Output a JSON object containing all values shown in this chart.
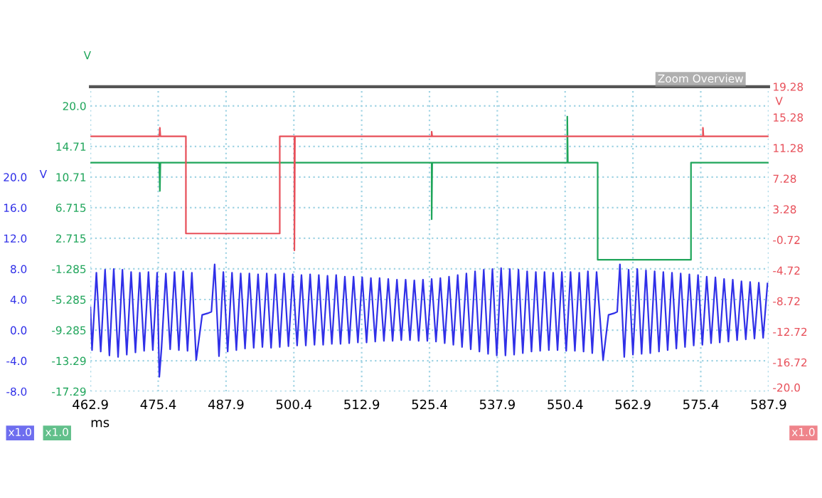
{
  "chart_data": {
    "type": "line",
    "xlabel": "ms",
    "ylabel": "V",
    "y2label": "V",
    "y3label": "V",
    "grid": true,
    "line_style": "solid",
    "xlim": [
      462.9,
      587.9
    ],
    "xticks": [
      462.9,
      475.4,
      487.9,
      500.4,
      512.9,
      525.4,
      537.9,
      550.4,
      562.9,
      575.4,
      587.9
    ],
    "ylim": [
      -17.29,
      22.52
    ],
    "yticks": [
      {
        "value": 20,
        "label": "20.0"
      },
      14.71,
      10.71,
      6.715,
      2.715,
      -1.285,
      -5.285,
      -9.285,
      -13.29,
      -17.29
    ],
    "y2lim": [
      -20.52,
      19.28
    ],
    "y2ticks": [
      19.28,
      15.28,
      11.28,
      7.28,
      3.28,
      -0.72,
      -4.72,
      -8.72,
      -12.72,
      -16.72,
      {
        "value": -20,
        "label": "-20.0"
      }
    ],
    "y3lim": [
      -8.0,
      31.81
    ],
    "y3ticks": [
      {
        "value": 20,
        "label": "20.0"
      },
      {
        "value": 16,
        "label": "16.0"
      },
      {
        "value": 12,
        "label": "12.0"
      },
      {
        "value": 8,
        "label": "8.0"
      },
      {
        "value": 4,
        "label": "4.0"
      },
      {
        "value": 0,
        "label": "0.0"
      },
      {
        "value": -4,
        "label": "-4.0"
      },
      {
        "value": -8,
        "label": "-8.0"
      }
    ],
    "annotations": [
      "Zoom Overview",
      "x1.0",
      "x1.0",
      "x1.0"
    ],
    "series": [
      {
        "axis": "y2",
        "color": "#e8505a",
        "x": [
          462.9,
          475.6,
          475.7,
          475.8,
          480.5,
          480.5,
          497.8,
          497.8,
          500.5,
          500.5,
          500.6,
          525.8,
          525.8,
          525.9,
          575.8,
          575.8,
          575.9,
          587.9
        ],
        "values": [
          12.8,
          12.8,
          13.9,
          12.8,
          12.8,
          0.1,
          0.1,
          12.8,
          12.8,
          -2.1,
          12.8,
          12.8,
          13.4,
          12.8,
          12.8,
          13.9,
          12.8,
          12.8
        ]
      },
      {
        "axis": "y",
        "color": "#1fa55a",
        "x": [
          462.9,
          475.6,
          475.7,
          475.8,
          525.8,
          525.8,
          525.9,
          550.8,
          550.8,
          550.9,
          556.4,
          556.4,
          573.6,
          573.6,
          587.9
        ],
        "values": [
          12.6,
          12.6,
          8.9,
          12.6,
          12.6,
          5.2,
          12.6,
          12.6,
          18.6,
          12.6,
          12.6,
          -0.1,
          -0.1,
          12.6,
          12.6
        ]
      },
      {
        "axis": "y3",
        "color": "#3030e8",
        "x": [
          462.9,
          463.2,
          464.0,
          464.8,
          465.6,
          466.4,
          467.2,
          468.0,
          468.8,
          469.6,
          470.4,
          471.2,
          472.0,
          472.8,
          473.6,
          474.4,
          475.2,
          475.6,
          476.0,
          476.8,
          477.6,
          478.4,
          479.2,
          480.0,
          480.8,
          481.6,
          482.4,
          483.5,
          484.5,
          485.2,
          485.8,
          486.6,
          487.4,
          488.2,
          489.0,
          489.8,
          490.6,
          491.4,
          492.2,
          493.0,
          493.8,
          494.6,
          495.4,
          496.2,
          497.0,
          497.8,
          498.6,
          499.4,
          500.2,
          501.0,
          501.8,
          502.6,
          503.4,
          504.2,
          505.0,
          505.8,
          506.6,
          507.4,
          508.2,
          509.0,
          509.8,
          510.6,
          511.4,
          512.2,
          513.0,
          513.8,
          514.6,
          515.4,
          516.2,
          517.0,
          517.8,
          518.6,
          519.4,
          520.2,
          521.0,
          521.8,
          522.6,
          523.4,
          524.2,
          525.0,
          525.8,
          526.6,
          527.4,
          528.2,
          529.0,
          529.8,
          530.6,
          531.4,
          532.2,
          533.0,
          533.8,
          534.6,
          535.4,
          536.2,
          537.0,
          537.8,
          538.6,
          539.4,
          540.2,
          541.0,
          541.8,
          542.6,
          543.4,
          544.2,
          545.0,
          545.8,
          546.6,
          547.4,
          548.2,
          549.0,
          549.8,
          550.6,
          551.4,
          552.2,
          553.0,
          553.8,
          554.6,
          555.4,
          556.2,
          557.4,
          558.4,
          559.4,
          560.0,
          560.5,
          561.3,
          562.1,
          562.9,
          563.7,
          564.5,
          565.3,
          566.1,
          566.9,
          567.7,
          568.5,
          569.3,
          570.1,
          570.9,
          571.7,
          572.5,
          573.3,
          574.1,
          574.9,
          575.7,
          576.5,
          577.3,
          578.1,
          578.9,
          579.7,
          580.5,
          581.3,
          582.1,
          582.9,
          583.7,
          584.5,
          585.3,
          586.1,
          586.9,
          587.7
        ],
        "values": [
          3.0,
          -2.6,
          7.5,
          -2.8,
          7.9,
          -3.3,
          8.0,
          -3.5,
          7.9,
          -3.2,
          7.6,
          -2.9,
          7.5,
          -2.7,
          7.6,
          -2.6,
          7.5,
          -6.1,
          -2.4,
          7.4,
          -2.5,
          7.6,
          -2.6,
          7.7,
          -2.7,
          7.5,
          -3.9,
          2.0,
          2.2,
          2.4,
          8.6,
          -3.4,
          7.6,
          -2.8,
          7.5,
          -2.6,
          7.4,
          -2.4,
          7.4,
          -2.3,
          7.3,
          -2.2,
          7.4,
          -2.3,
          7.3,
          -2.2,
          7.4,
          -2.1,
          7.3,
          -2.0,
          7.2,
          -2.0,
          7.3,
          -1.9,
          7.2,
          -1.9,
          7.1,
          -1.8,
          7.2,
          -1.8,
          7.0,
          -1.7,
          7.0,
          -1.6,
          6.9,
          -1.6,
          6.8,
          -1.5,
          6.8,
          -1.4,
          6.7,
          -1.4,
          6.6,
          -1.3,
          6.6,
          -1.3,
          6.5,
          -1.4,
          6.6,
          -1.4,
          6.7,
          -1.5,
          6.8,
          -1.7,
          7.0,
          -1.9,
          7.2,
          -2.2,
          7.4,
          -2.5,
          7.7,
          -2.8,
          7.9,
          -3.1,
          8.0,
          -3.3,
          8.1,
          -3.3,
          8.0,
          -3.2,
          7.9,
          -3.0,
          7.7,
          -2.8,
          7.6,
          -2.7,
          7.6,
          -2.6,
          7.5,
          -2.6,
          7.6,
          -2.7,
          7.6,
          -2.7,
          7.5,
          -2.8,
          7.7,
          -3.0,
          7.6,
          -3.9,
          2.0,
          2.2,
          2.4,
          8.6,
          -3.5,
          7.9,
          -3.2,
          8.0,
          -3.1,
          7.8,
          -3.0,
          7.7,
          -2.8,
          7.6,
          -2.6,
          7.5,
          -2.4,
          7.4,
          -2.2,
          7.3,
          -2.0,
          7.2,
          -1.9,
          7.0,
          -1.7,
          6.9,
          -1.6,
          6.7,
          -1.5,
          6.6,
          -1.3,
          6.4,
          -1.2,
          6.3,
          -1.1,
          6.2,
          -1.0,
          6.1
        ]
      }
    ]
  }
}
